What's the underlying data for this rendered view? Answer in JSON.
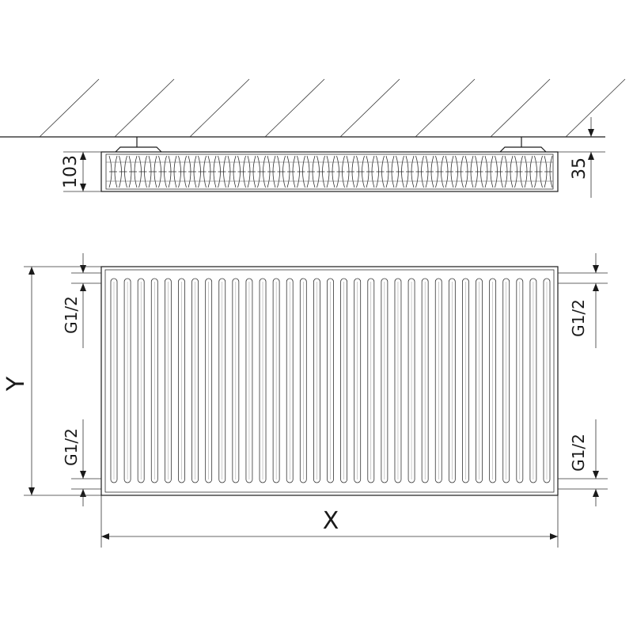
{
  "dimensions": {
    "depth": "103",
    "wall_distance": "35",
    "height_label": "Y",
    "width_label": "X",
    "connection_top_left": "G1/2",
    "connection_bottom_left": "G1/2",
    "connection_top_right": "G1/2",
    "connection_bottom_right": "G1/2"
  },
  "colors": {
    "line": "#1a1a1a",
    "background": "#ffffff"
  },
  "flute_count": 33
}
